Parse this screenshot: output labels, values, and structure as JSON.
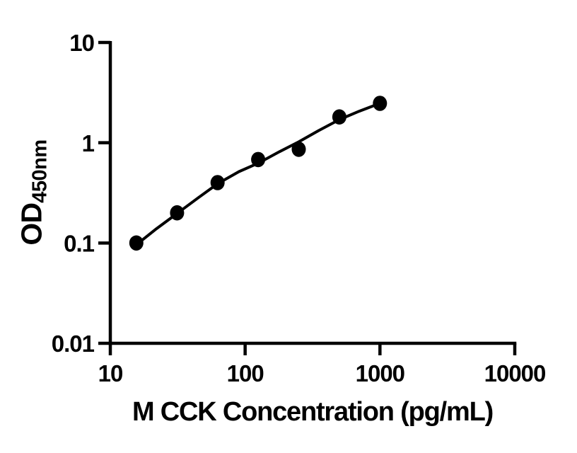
{
  "colors": {
    "ink": "#000000",
    "background": "#ffffff"
  },
  "chart_data": {
    "type": "scatter",
    "title": "",
    "xlabel": "M CCK Concentration (pg/mL)",
    "ylabel_main": "OD",
    "ylabel_sub": "450nm",
    "x_scale": "log10",
    "y_scale": "log10",
    "xlim": [
      10,
      10000
    ],
    "ylim": [
      0.01,
      10
    ],
    "grid": false,
    "legend": false,
    "x_ticks": [
      {
        "value": 10,
        "label": "10"
      },
      {
        "value": 100,
        "label": "100"
      },
      {
        "value": 1000,
        "label": "1000"
      },
      {
        "value": 10000,
        "label": "10000"
      }
    ],
    "y_ticks": [
      {
        "value": 10,
        "label": "10"
      },
      {
        "value": 1,
        "label": "1"
      },
      {
        "value": 0.1,
        "label": "0.1"
      },
      {
        "value": 0.01,
        "label": "0.01"
      }
    ],
    "series": [
      {
        "name": "standard-data-points",
        "type": "scatter",
        "marker": "filled-circle",
        "points": [
          {
            "x": 15.6,
            "y": 0.1
          },
          {
            "x": 31.25,
            "y": 0.2
          },
          {
            "x": 62.5,
            "y": 0.4
          },
          {
            "x": 125,
            "y": 0.68
          },
          {
            "x": 250,
            "y": 0.86
          },
          {
            "x": 500,
            "y": 1.81
          },
          {
            "x": 1000,
            "y": 2.47
          }
        ]
      },
      {
        "name": "fit-curve",
        "type": "line",
        "points": [
          {
            "x": 15.6,
            "y": 0.096
          },
          {
            "x": 22,
            "y": 0.139
          },
          {
            "x": 31.25,
            "y": 0.197
          },
          {
            "x": 45,
            "y": 0.283
          },
          {
            "x": 62.5,
            "y": 0.39
          },
          {
            "x": 90,
            "y": 0.515
          },
          {
            "x": 125,
            "y": 0.625
          },
          {
            "x": 180,
            "y": 0.815
          },
          {
            "x": 250,
            "y": 1.02
          },
          {
            "x": 350,
            "y": 1.32
          },
          {
            "x": 500,
            "y": 1.7
          },
          {
            "x": 700,
            "y": 2.06
          },
          {
            "x": 1000,
            "y": 2.47
          }
        ]
      }
    ]
  }
}
